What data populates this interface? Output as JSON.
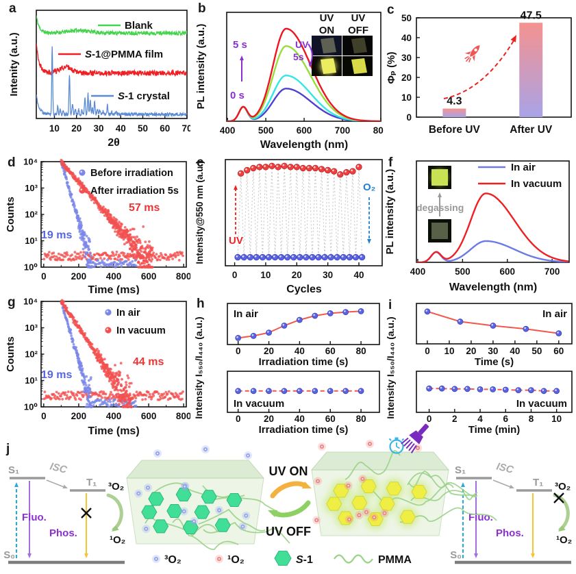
{
  "letters": [
    "a",
    "b",
    "c",
    "d",
    "e",
    "f",
    "g",
    "h",
    "i",
    "j"
  ],
  "chart_data": [
    {
      "id": "a",
      "type": "line",
      "xlabel": "2θ",
      "ylabel": "Intenity (a.u.)",
      "xlim": [
        1.8,
        70
      ],
      "xticks": [
        10,
        20,
        30,
        40,
        50,
        60,
        70
      ],
      "series": [
        {
          "name": "Blank",
          "color": "#44d34c",
          "baseline": 0.79,
          "left_spike": 0.16,
          "hump": {
            "center": 21,
            "width": 5,
            "height": 0.025
          },
          "noise": 0.018
        },
        {
          "name": "S-1@PMMA film",
          "color": "#ee2024",
          "baseline": 0.42,
          "left_spike": 0.28,
          "hump": {
            "center": 15,
            "width": 2.6,
            "height": 0.058
          },
          "noise": 0.024
        },
        {
          "name": "S-1 crystal",
          "color": "#5b8bd5",
          "baseline": 0.038,
          "left_spike": 0.18,
          "noise": 0.015,
          "peaks": [
            [
              9,
              0.62
            ],
            [
              11.5,
              0.08
            ],
            [
              12.6,
              0.05
            ],
            [
              14,
              0.04
            ],
            [
              16.8,
              0.36
            ],
            [
              18.2,
              0.1
            ],
            [
              19.5,
              0.05
            ],
            [
              21,
              0.045
            ],
            [
              22.5,
              0.04
            ],
            [
              23.8,
              0.16
            ],
            [
              25.2,
              0.19
            ],
            [
              26.2,
              0.13
            ],
            [
              27.2,
              0.06
            ],
            [
              28.2,
              0.12
            ],
            [
              29.5,
              0.05
            ],
            [
              30.5,
              0.045
            ],
            [
              32,
              0.03
            ],
            [
              34,
              0.085
            ],
            [
              36,
              0.025
            ],
            [
              38,
              0.02
            ],
            [
              40.5,
              0.015
            ],
            [
              45,
              0.015
            ]
          ]
        }
      ]
    },
    {
      "id": "b",
      "type": "pl",
      "xlabel": "Wavelength (nm)",
      "ylabel": "PL intensity (a.u.)",
      "xlim": [
        398,
        800
      ],
      "xticks": [
        400,
        500,
        600,
        700,
        800
      ],
      "peak_nm": 553,
      "shoulder_nm": 441,
      "shoulder_amp": 0.13,
      "curves": [
        {
          "name": "0 s",
          "amp": 0.3,
          "color": "#5140cf"
        },
        {
          "name": "",
          "amp": 0.42,
          "color": "#33e6e6"
        },
        {
          "name": "",
          "amp": 0.69,
          "color": "#97dd3c"
        },
        {
          "name": "5 s",
          "amp": 0.85,
          "color": "#ee1520"
        }
      ],
      "annotation": {
        "top": "5 s",
        "bottom": "0 s"
      },
      "inset": {
        "col_headers": [
          "UV ON",
          "UV OFF"
        ],
        "side_label": "UV 5s"
      }
    },
    {
      "id": "c",
      "type": "bar",
      "ylabel": "Φₚ (%)",
      "ylim": [
        0,
        50
      ],
      "yticks": [
        0,
        10,
        20,
        30,
        40,
        50
      ],
      "categories": [
        "Before UV",
        "After UV"
      ],
      "values": [
        4.3,
        47.5
      ],
      "value_labels": [
        "4.3",
        "47.5"
      ],
      "bar_gradient_top": "#f5928f",
      "bar_gradient_bottom": "#a8a3e7",
      "arrow_color": "#ee2222"
    },
    {
      "id": "d",
      "type": "decay",
      "xlabel": "Time (ms)",
      "ylabel": "Counts",
      "xlim": [
        -15,
        815
      ],
      "xticks": [
        0,
        200,
        400,
        600,
        800
      ],
      "yticks_log": [
        "10⁰",
        "10¹",
        "10²",
        "10³",
        "10⁴"
      ],
      "series": [
        {
          "name": "Before irradiation",
          "color": "#7b86e8",
          "tau_ms": 19,
          "t0_ms": 100,
          "peak_counts": 10000,
          "lifetime_label": "19 ms",
          "label_color": "#5665e0"
        },
        {
          "name": "After irradiation 5s",
          "color": "#f25050",
          "tau_ms": 57,
          "t0_ms": 100,
          "peak_counts": 10000,
          "lifetime_label": "57 ms",
          "label_color": "#ee3333"
        }
      ]
    },
    {
      "id": "e",
      "type": "cycles",
      "xlabel": "Cycles",
      "ylabel": "Intensity@550 nm (a.u.)",
      "xlim": [
        -3,
        47.5
      ],
      "xticks": [
        0,
        10,
        20,
        30,
        40
      ],
      "on_values": [
        0.87,
        0.9,
        0.92,
        0.93,
        0.93,
        0.94,
        0.93,
        0.94,
        0.93,
        0.93,
        0.92,
        0.92,
        0.92,
        0.91,
        0.9,
        0.89,
        0.86,
        0.88,
        0.89,
        0.93
      ],
      "off_value": 0.08,
      "on_color": "#ee4040",
      "off_color": "#5c63e0",
      "annotations": {
        "left": "UV",
        "left_color": "#ee2222",
        "right": "O₂",
        "right_color": "#1f7fd4"
      }
    },
    {
      "id": "f",
      "type": "pl",
      "xlabel": "Wavelength (nm)",
      "ylabel": "PL intensity (a.u.)",
      "xlim": [
        397,
        738
      ],
      "xticks": [
        400,
        500,
        600,
        700
      ],
      "peak_nm": 552,
      "shoulder_nm": 441,
      "shoulder_amp": 0.1,
      "curves": [
        {
          "name": "In air",
          "amp": 0.21,
          "color": "#6b7ae6"
        },
        {
          "name": "In vacuum",
          "amp": 0.68,
          "color": "#ee2024"
        }
      ],
      "legend": [
        "In air",
        "In vacuum"
      ],
      "inset_label": "degassing"
    },
    {
      "id": "g",
      "type": "decay",
      "xlabel": "Time (ms)",
      "ylabel": "Counts",
      "xlim": [
        -15,
        815
      ],
      "xticks": [
        0,
        200,
        400,
        600,
        800
      ],
      "yticks_log": [
        "10⁰",
        "10¹",
        "10²",
        "10³",
        "10⁴"
      ],
      "series": [
        {
          "name": "In air",
          "color": "#7b86e8",
          "tau_ms": 19,
          "t0_ms": 100,
          "peak_counts": 10000,
          "lifetime_label": "19 ms",
          "label_color": "#5665e0"
        },
        {
          "name": "In vacuum",
          "color": "#f25050",
          "tau_ms": 44,
          "t0_ms": 100,
          "peak_counts": 10000,
          "lifetime_label": "44 ms",
          "label_color": "#ee3333"
        }
      ]
    },
    {
      "id": "h",
      "type": "ratio",
      "ylabel": "Intensity I₅₅₀/I₄₄₀ (a.u.)",
      "point_color": "#5c63e0",
      "line_color": "#f2574d",
      "subpanels": [
        {
          "label": "In air",
          "label_corner": "tl",
          "xlabel": "Irradiation time (s)",
          "xlim": [
            -7,
            92
          ],
          "xticks": [
            0,
            20,
            40,
            60,
            80
          ],
          "x": [
            0,
            10,
            20,
            30,
            40,
            50,
            60,
            70,
            80
          ],
          "y": [
            0.16,
            0.21,
            0.29,
            0.46,
            0.6,
            0.7,
            0.76,
            0.79,
            0.81
          ],
          "line_dash": false
        },
        {
          "label": "In vacuum",
          "label_corner": "bl",
          "xlabel": "Irradiation time (s)",
          "xlim": [
            -7,
            92
          ],
          "xticks": [
            0,
            20,
            40,
            60,
            80
          ],
          "x": [
            0,
            10,
            20,
            30,
            40,
            50,
            60,
            70,
            80
          ],
          "y": [
            0.52,
            0.52,
            0.52,
            0.52,
            0.52,
            0.52,
            0.52,
            0.52,
            0.52
          ],
          "line_dash": true
        }
      ]
    },
    {
      "id": "i",
      "type": "ratio",
      "ylabel": "Intensity I₅₅₀/I₄₄₀ (a.u.)",
      "point_color": "#5c63e0",
      "line_color": "#f2574d",
      "subpanels": [
        {
          "label": "In air",
          "label_corner": "tr",
          "xlabel": "Time (s)",
          "xlim": [
            -5,
            66
          ],
          "xticks": [
            0,
            10,
            20,
            30,
            40,
            50,
            60
          ],
          "x": [
            0,
            15,
            30,
            45,
            60
          ],
          "y": [
            0.8,
            0.55,
            0.45,
            0.37,
            0.26
          ],
          "line_dash": false
        },
        {
          "label": "In vacuum",
          "label_corner": "br",
          "xlabel": "Time (min)",
          "xlim": [
            -1,
            11.2
          ],
          "xticks": [
            0,
            2,
            4,
            6,
            8,
            10
          ],
          "x": [
            0,
            1,
            2,
            3,
            4,
            5,
            6,
            7,
            8,
            9,
            10
          ],
          "y": [
            0.58,
            0.58,
            0.57,
            0.57,
            0.56,
            0.56,
            0.55,
            0.54,
            0.54,
            0.52,
            0.52
          ],
          "line_dash": true
        }
      ]
    }
  ],
  "scheme": {
    "left_diagram": {
      "s1": "S₁",
      "t1": "T₁",
      "s0": "S₀",
      "isc": "ISC",
      "fluo": "Fluo.",
      "phos": "Phos.",
      "o2_triplet": "³O₂",
      "o2_singlet": "¹O₂",
      "crossed": "phos"
    },
    "right_diagram": {
      "s1": "S₁",
      "t1": "T₁",
      "s0": "S₀",
      "isc": "ISC",
      "fluo": "Fluo.",
      "phos": "Phos.",
      "o2_triplet": "³O₂",
      "o2_singlet": "¹O₂",
      "crossed": "transfer"
    },
    "uv_on": "UV ON",
    "uv_off": "UV OFF",
    "legend": [
      {
        "icon": "triplet-oxygen-dot",
        "label": "³O₂"
      },
      {
        "icon": "singlet-oxygen-dot",
        "label": "¹O₂"
      },
      {
        "icon": "s1-hexagon",
        "label": "S-1"
      },
      {
        "icon": "pmma-wave",
        "label": "PMMA"
      }
    ],
    "colors": {
      "fluo_arrow": "#a36de0",
      "phos_arrow": "#f5c431",
      "excitation_arrow": "#2aa8e0",
      "transfer_arrow": "#9cc87e",
      "uv_on_arrow": "#f3b13f",
      "uv_off_arrow": "#8fd063",
      "hexagon_green": "#40de96",
      "hexagon_yellow": "#eeee44",
      "o2_triplet_dot": "#97a8ec",
      "o2_singlet_dot": "#ef8a8a",
      "pmma_line": "#9ad287",
      "box_fill": "#edf5e7"
    }
  }
}
